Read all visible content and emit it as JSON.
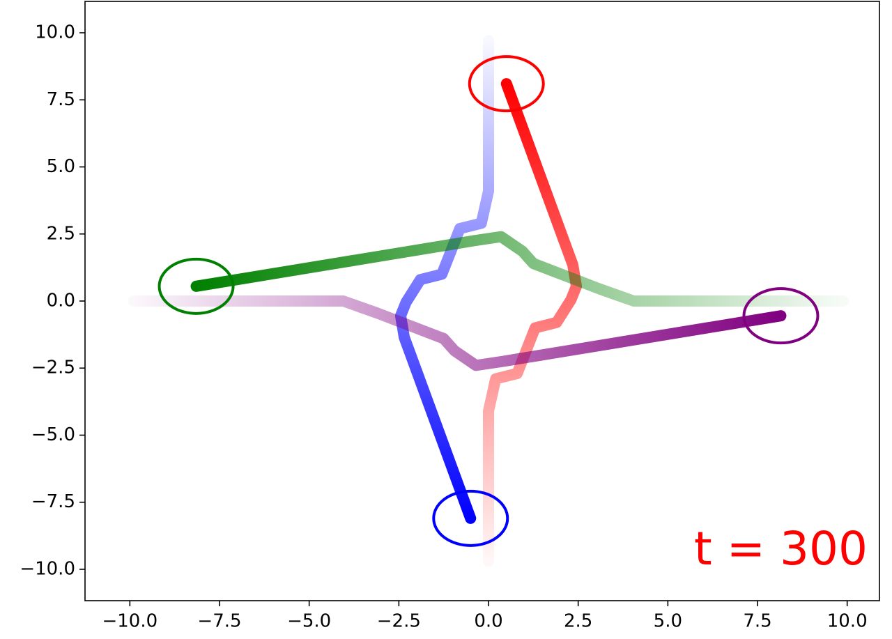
{
  "chart_data": {
    "type": "trajectory",
    "annotation": "t = 300",
    "xlim": [
      -11.25,
      10.9
    ],
    "ylim": [
      -11.17,
      11.17
    ],
    "xticks": [
      {
        "value": -10,
        "label": "−10.0"
      },
      {
        "value": -7.5,
        "label": "−7.5"
      },
      {
        "value": -5,
        "label": "−5.0"
      },
      {
        "value": -2.5,
        "label": "−2.5"
      },
      {
        "value": 0,
        "label": "0.0"
      },
      {
        "value": 2.5,
        "label": "2.5"
      },
      {
        "value": 5,
        "label": "5.0"
      },
      {
        "value": 7.5,
        "label": "7.5"
      },
      {
        "value": 10,
        "label": "10.0"
      }
    ],
    "yticks": [
      {
        "value": -10,
        "label": "−10.0"
      },
      {
        "value": -7.5,
        "label": "−7.5"
      },
      {
        "value": -5,
        "label": "−5.0"
      },
      {
        "value": -2.5,
        "label": "−2.5"
      },
      {
        "value": 0,
        "label": "0.0"
      },
      {
        "value": 2.5,
        "label": "2.5"
      },
      {
        "value": 5,
        "label": "5.0"
      },
      {
        "value": 7.5,
        "label": "7.5"
      },
      {
        "value": 10,
        "label": "10.0"
      }
    ],
    "series": [
      {
        "color": "#ff0000",
        "x": [
          0,
          0,
          0,
          0.2,
          0.8,
          1.3,
          1.9,
          2.3,
          2.45,
          2.35,
          0.5
        ],
        "y": [
          -9.7,
          -7,
          -4.1,
          -2.9,
          -2.7,
          -1.0,
          -0.8,
          0.05,
          0.55,
          1.35,
          8.1
        ]
      },
      {
        "color": "#0000ff",
        "x": [
          0,
          0,
          0,
          -0.2,
          -0.8,
          -1.3,
          -1.9,
          -2.3,
          -2.45,
          -2.35,
          -0.5
        ],
        "y": [
          9.7,
          7,
          4.1,
          2.9,
          2.7,
          1.0,
          0.8,
          -0.05,
          -0.55,
          -1.35,
          -8.1
        ]
      },
      {
        "color": "#008000",
        "x": [
          9.9,
          7,
          4.05,
          3.1,
          1.25,
          0.95,
          0.35,
          -0.4,
          -8.15
        ],
        "y": [
          0,
          0,
          0,
          0.45,
          1.4,
          1.85,
          2.4,
          2.25,
          0.55
        ]
      },
      {
        "color": "#800080",
        "x": [
          -9.9,
          -7,
          -4.05,
          -3.1,
          -1.25,
          -0.95,
          -0.35,
          0.4,
          8.15
        ],
        "y": [
          0,
          0,
          0,
          -0.45,
          -1.4,
          -1.85,
          -2.4,
          -2.25,
          -0.55
        ]
      }
    ]
  }
}
